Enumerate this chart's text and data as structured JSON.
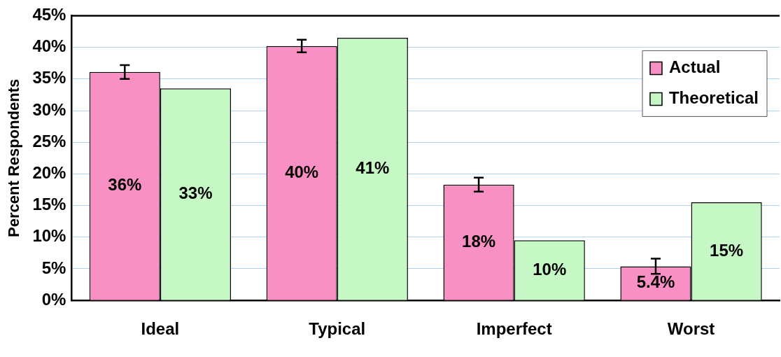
{
  "chart_data": {
    "type": "bar",
    "ylabel": "Percent Respondents",
    "categories": [
      "Ideal",
      "Typical",
      "Imperfect",
      "Worst"
    ],
    "series": [
      {
        "name": "Actual",
        "color": "#f990c4",
        "values": [
          36.1,
          40.2,
          18.3,
          5.4
        ],
        "errors": [
          1.1,
          1.0,
          1.1,
          1.2
        ],
        "value_labels": [
          "36%",
          "40%",
          "18%",
          "5.4%"
        ]
      },
      {
        "name": "Theoretical",
        "color": "#c6f8c6",
        "values": [
          33.5,
          41.5,
          9.5,
          15.5
        ],
        "value_labels": [
          "33%",
          "41%",
          "10%",
          "15%"
        ]
      }
    ],
    "ylim": [
      0,
      45
    ],
    "yticks": [
      {
        "value": 0,
        "label": "0%"
      },
      {
        "value": 5,
        "label": "5%"
      },
      {
        "value": 10,
        "label": "10%"
      },
      {
        "value": 15,
        "label": "15%"
      },
      {
        "value": 20,
        "label": "20%"
      },
      {
        "value": 25,
        "label": "25%"
      },
      {
        "value": 30,
        "label": "30%"
      },
      {
        "value": 35,
        "label": "35%"
      },
      {
        "value": 40,
        "label": "40%"
      },
      {
        "value": 45,
        "label": "45%"
      }
    ],
    "grid": "y",
    "legend": "top right"
  }
}
